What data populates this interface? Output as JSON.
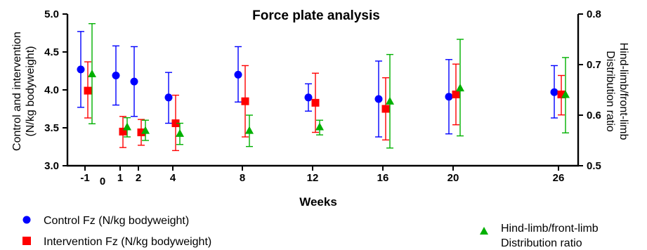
{
  "chart_data": {
    "type": "scatter",
    "title": "Force plate analysis",
    "xlabel": "Weeks",
    "ylabel_left": [
      "Control and intervention",
      "(N/kg bodyweight)"
    ],
    "ylabel_right": [
      "Hind-limb/front-limb",
      "Distribution ratio"
    ],
    "ylim_left": [
      3.0,
      5.0
    ],
    "ylim_right": [
      0.5,
      0.8
    ],
    "yticks_left": [
      "3.0",
      "3.5",
      "4.0",
      "4.5",
      "5.0"
    ],
    "yticks_right": [
      "0.5",
      "0.6",
      "0.7",
      "0.8"
    ],
    "xticks": [
      "-1",
      "0",
      "1",
      "2",
      "4",
      "8",
      "12",
      "16",
      "20",
      "26"
    ],
    "grid": false,
    "legend_position": "bottom",
    "series": [
      {
        "name": "Control Fz (N/kg bodyweight)",
        "axis": "left",
        "marker": "circle",
        "color": "#0000ff",
        "x": [
          -1,
          1,
          2,
          4,
          8,
          12,
          16,
          20,
          26
        ],
        "y": [
          4.27,
          4.19,
          4.11,
          3.9,
          4.2,
          3.9,
          3.88,
          3.91,
          3.97
        ],
        "err_low": [
          3.77,
          3.8,
          3.65,
          3.56,
          3.84,
          3.72,
          3.38,
          3.42,
          3.63
        ],
        "err_high": [
          4.77,
          4.58,
          4.57,
          4.23,
          4.57,
          4.08,
          4.38,
          4.4,
          4.32
        ]
      },
      {
        "name": "Intervention Fz (N/kg bodyweight)",
        "axis": "left",
        "marker": "square",
        "color": "#ff0000",
        "x": [
          -1,
          1,
          2,
          4,
          8,
          12,
          16,
          20,
          26
        ],
        "y": [
          3.99,
          3.45,
          3.44,
          3.56,
          3.85,
          3.83,
          3.75,
          3.94,
          3.94
        ],
        "err_low": [
          3.63,
          3.24,
          3.27,
          3.2,
          3.38,
          3.44,
          3.34,
          3.54,
          3.67
        ],
        "err_high": [
          4.37,
          3.65,
          3.61,
          3.93,
          4.32,
          4.22,
          4.16,
          4.34,
          4.19
        ]
      },
      {
        "name": "Hind-limb/front-limb Distribution ratio",
        "axis": "right",
        "marker": "triangle",
        "color": "#00b000",
        "x": [
          -1,
          1,
          2,
          4,
          8,
          12,
          16,
          20,
          26
        ],
        "y": [
          0.682,
          0.577,
          0.57,
          0.564,
          0.57,
          0.577,
          0.628,
          0.654,
          0.641
        ],
        "err_low": [
          0.583,
          0.557,
          0.55,
          0.542,
          0.538,
          0.561,
          0.535,
          0.559,
          0.565
        ],
        "err_high": [
          0.781,
          0.595,
          0.59,
          0.584,
          0.6,
          0.59,
          0.72,
          0.75,
          0.714
        ]
      }
    ]
  },
  "legend": {
    "control": "Control Fz (N/kg bodyweight)",
    "intervention": "Intervention Fz (N/kg bodyweight)",
    "ratio_line1": "Hind-limb/front-limb",
    "ratio_line2": "Distribution ratio"
  }
}
